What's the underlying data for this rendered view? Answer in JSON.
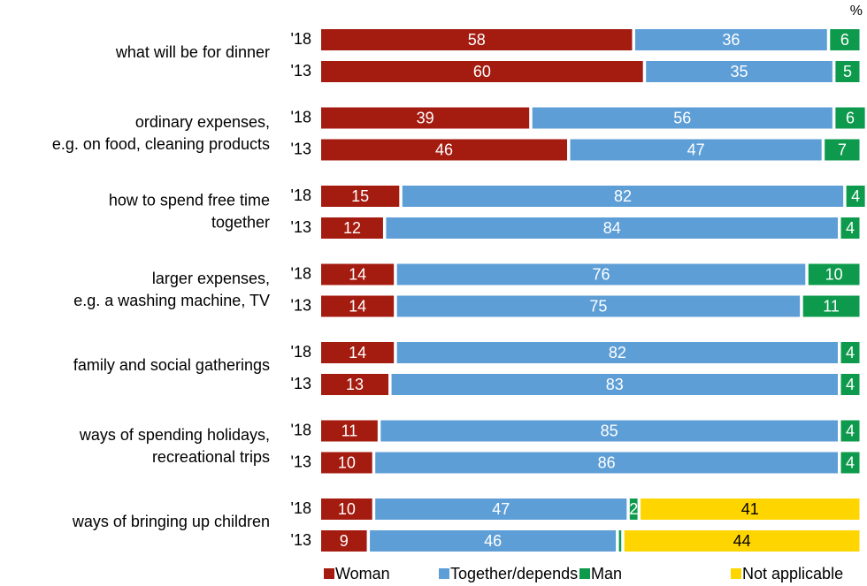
{
  "chart_data": {
    "type": "stacked-bar",
    "unit": "%",
    "xlim": [
      0,
      100
    ],
    "groups": [
      {
        "lines": [
          "what will be for dinner"
        ]
      },
      {
        "lines": [
          "ordinary expenses,",
          "e.g. on food, cleaning products"
        ]
      },
      {
        "lines": [
          "how to spend free time",
          "together"
        ]
      },
      {
        "lines": [
          "larger expenses,",
          "e.g. a washing machine, TV"
        ]
      },
      {
        "lines": [
          "family and social gatherings"
        ]
      },
      {
        "lines": [
          "ways of spending holidays,",
          "recreational trips"
        ]
      },
      {
        "lines": [
          "ways of bringing up children"
        ]
      }
    ],
    "categories": [
      "'18",
      "'13",
      "'18",
      "'13",
      "'18",
      "'13",
      "'18",
      "'13",
      "'18",
      "'13",
      "'18",
      "'13",
      "'18",
      "'13"
    ],
    "series": [
      {
        "name": "Woman",
        "color": "#a41b10",
        "label_color": "#ffffff",
        "values": [
          58,
          60,
          39,
          46,
          15,
          12,
          14,
          14,
          14,
          13,
          11,
          10,
          10,
          9
        ]
      },
      {
        "name": "Together/depends",
        "color": "#5e9ed6",
        "label_color": "#ffffff",
        "values": [
          36,
          35,
          56,
          47,
          82,
          84,
          76,
          75,
          82,
          83,
          85,
          86,
          47,
          46
        ]
      },
      {
        "name": "Man",
        "color": "#0e9a4d",
        "label_color": "#ffffff",
        "values": [
          6,
          5,
          6,
          7,
          4,
          4,
          10,
          11,
          4,
          4,
          4,
          4,
          2,
          1
        ],
        "value_labels": [
          "6",
          "5",
          "6",
          "7",
          "4",
          "4",
          "10",
          "11",
          "4",
          "4",
          "4",
          "4",
          "2",
          null
        ]
      },
      {
        "name": "Not applicable",
        "color": "#ffd500",
        "label_color": "#000000",
        "values": [
          null,
          null,
          null,
          null,
          null,
          null,
          null,
          null,
          null,
          null,
          null,
          null,
          41,
          44
        ]
      }
    ]
  }
}
